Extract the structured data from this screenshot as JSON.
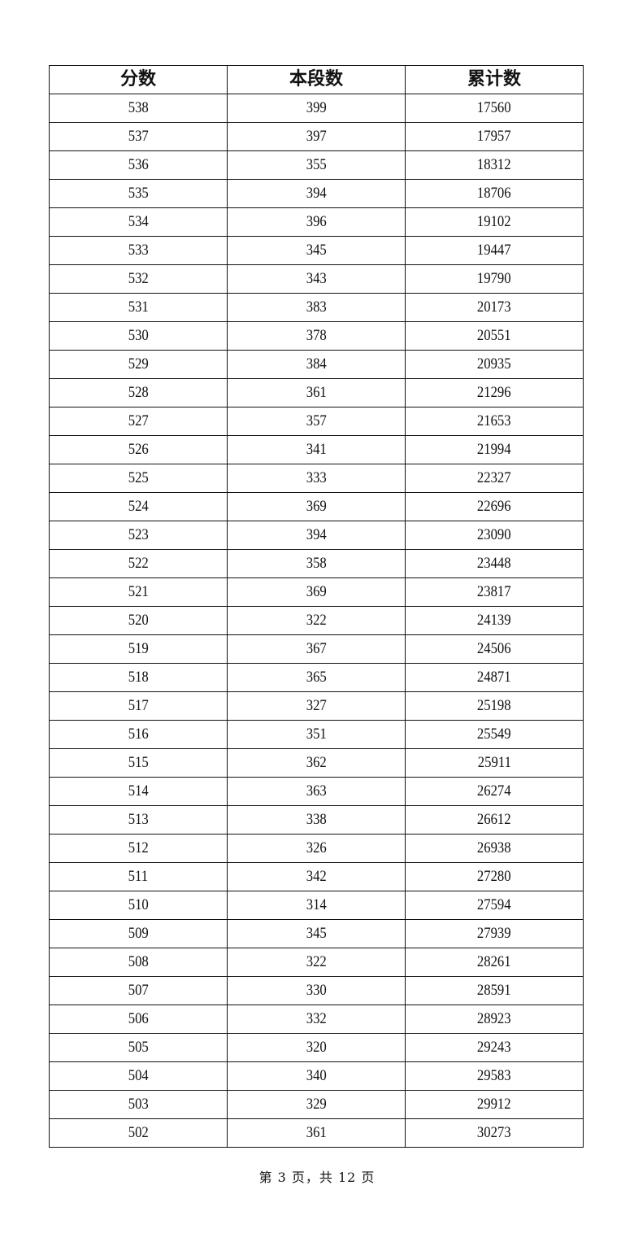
{
  "table": {
    "headers": [
      "分数",
      "本段数",
      "累计数"
    ],
    "rows": [
      [
        "538",
        "399",
        "17560"
      ],
      [
        "537",
        "397",
        "17957"
      ],
      [
        "536",
        "355",
        "18312"
      ],
      [
        "535",
        "394",
        "18706"
      ],
      [
        "534",
        "396",
        "19102"
      ],
      [
        "533",
        "345",
        "19447"
      ],
      [
        "532",
        "343",
        "19790"
      ],
      [
        "531",
        "383",
        "20173"
      ],
      [
        "530",
        "378",
        "20551"
      ],
      [
        "529",
        "384",
        "20935"
      ],
      [
        "528",
        "361",
        "21296"
      ],
      [
        "527",
        "357",
        "21653"
      ],
      [
        "526",
        "341",
        "21994"
      ],
      [
        "525",
        "333",
        "22327"
      ],
      [
        "524",
        "369",
        "22696"
      ],
      [
        "523",
        "394",
        "23090"
      ],
      [
        "522",
        "358",
        "23448"
      ],
      [
        "521",
        "369",
        "23817"
      ],
      [
        "520",
        "322",
        "24139"
      ],
      [
        "519",
        "367",
        "24506"
      ],
      [
        "518",
        "365",
        "24871"
      ],
      [
        "517",
        "327",
        "25198"
      ],
      [
        "516",
        "351",
        "25549"
      ],
      [
        "515",
        "362",
        "25911"
      ],
      [
        "514",
        "363",
        "26274"
      ],
      [
        "513",
        "338",
        "26612"
      ],
      [
        "512",
        "326",
        "26938"
      ],
      [
        "511",
        "342",
        "27280"
      ],
      [
        "510",
        "314",
        "27594"
      ],
      [
        "509",
        "345",
        "27939"
      ],
      [
        "508",
        "322",
        "28261"
      ],
      [
        "507",
        "330",
        "28591"
      ],
      [
        "506",
        "332",
        "28923"
      ],
      [
        "505",
        "320",
        "29243"
      ],
      [
        "504",
        "340",
        "29583"
      ],
      [
        "503",
        "329",
        "29912"
      ],
      [
        "502",
        "361",
        "30273"
      ]
    ]
  },
  "footer": {
    "page_label": "第 3 页，共 12 页"
  }
}
